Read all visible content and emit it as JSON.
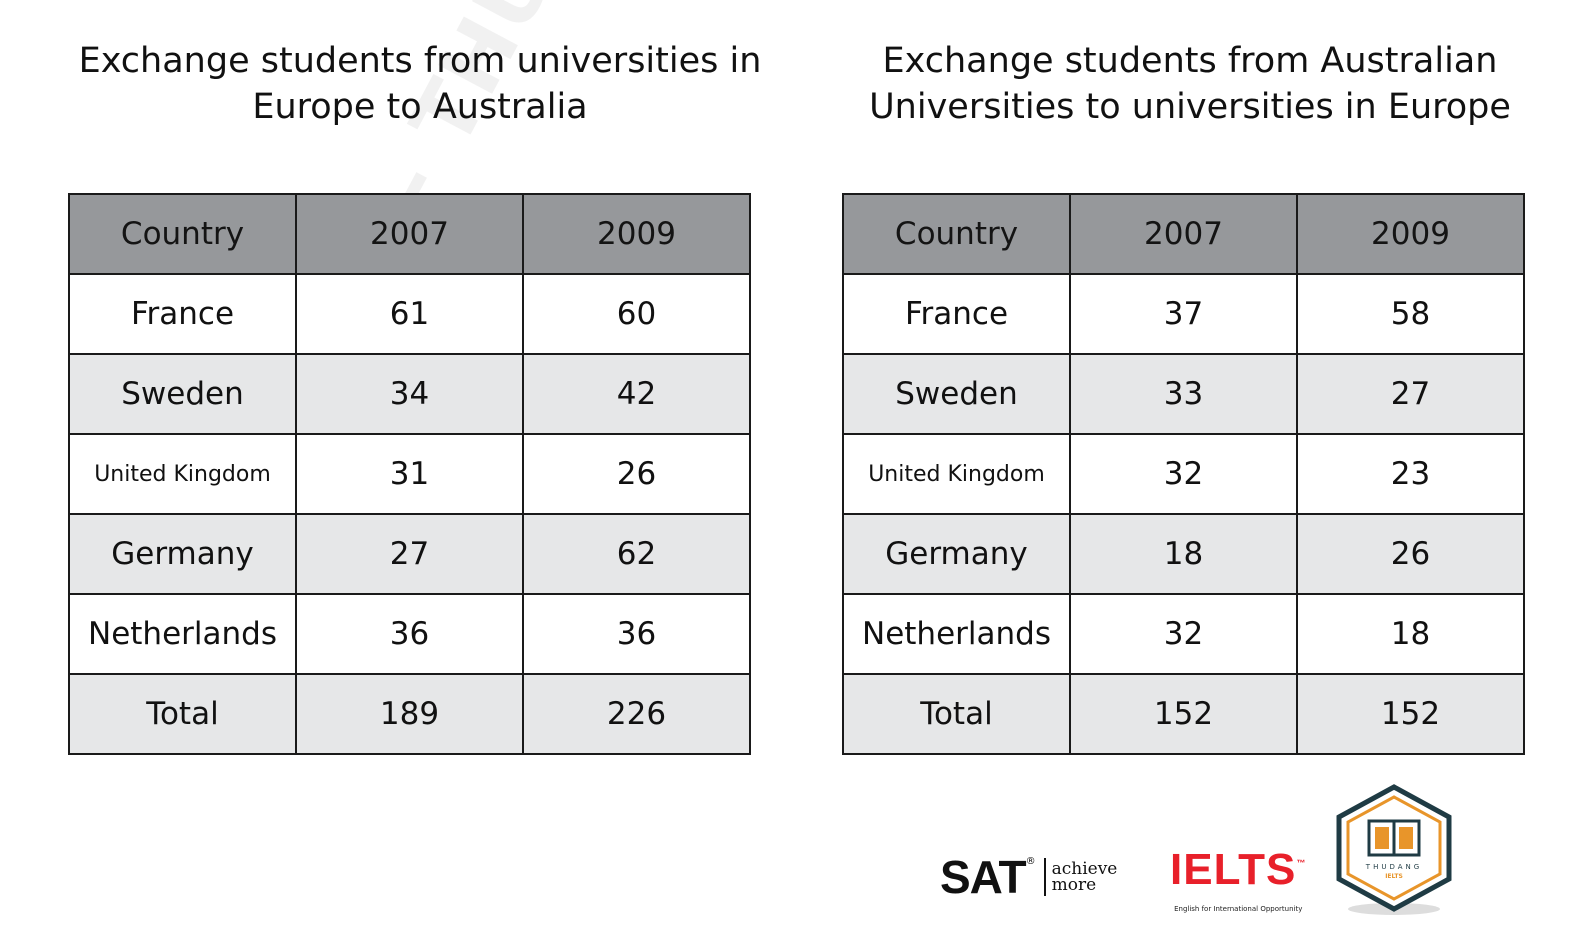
{
  "chart_data": [
    {
      "type": "table",
      "title_lines": [
        "Exchange students from universities in",
        "Europe to Australia"
      ],
      "columns": [
        "Country",
        "2007",
        "2009"
      ],
      "rows": [
        {
          "country": "France",
          "y2007": "61",
          "y2009": "60"
        },
        {
          "country": "Sweden",
          "y2007": "34",
          "y2009": "42"
        },
        {
          "country": "United Kingdom",
          "y2007": "31",
          "y2009": "26"
        },
        {
          "country": "Germany",
          "y2007": "27",
          "y2009": "62"
        },
        {
          "country": "Netherlands",
          "y2007": "36",
          "y2009": "36"
        },
        {
          "country": "Total",
          "y2007": "189",
          "y2009": "226"
        }
      ]
    },
    {
      "type": "table",
      "title_lines": [
        "Exchange students from Australian",
        "Universities to universities in Europe"
      ],
      "columns": [
        "Country",
        "2007",
        "2009"
      ],
      "rows": [
        {
          "country": "France",
          "y2007": "37",
          "y2009": "58"
        },
        {
          "country": "Sweden",
          "y2007": "33",
          "y2009": "27"
        },
        {
          "country": "United Kingdom",
          "y2007": "32",
          "y2009": "23"
        },
        {
          "country": "Germany",
          "y2007": "18",
          "y2009": "26"
        },
        {
          "country": "Netherlands",
          "y2007": "32",
          "y2009": "18"
        },
        {
          "country": "Total",
          "y2007": "152",
          "y2009": "152"
        }
      ]
    }
  ],
  "watermark": "IELTS - THƯ ĐẶNG",
  "logos": {
    "sat": {
      "word": "SAT",
      "reg": "®",
      "tagline": [
        "achieve",
        "more"
      ]
    },
    "ielts": {
      "word": "IELTS",
      "tm": "™",
      "subtitle": "English for International Opportunity"
    },
    "badge": {
      "top": "THUDANG",
      "bottom": "IELTS"
    }
  },
  "colors": {
    "header_bg": "#96989b",
    "row_alt_bg": "#e6e7e8",
    "ielts_red": "#e8202a",
    "badge_orange": "#e8952a",
    "badge_dark": "#1f3b44"
  }
}
